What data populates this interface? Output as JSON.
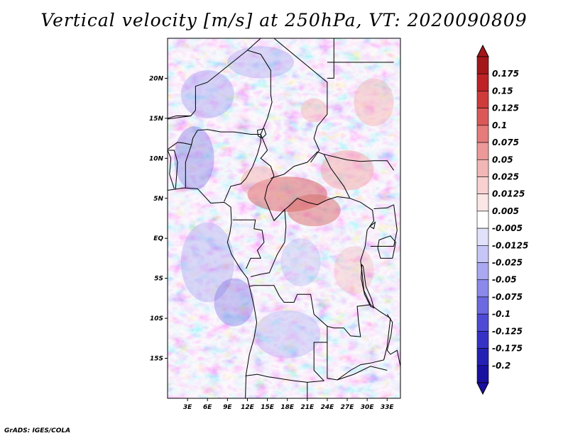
{
  "title": "Vertical velocity [m/s] at 250hPa, VT: 2020090809",
  "footer": "GrADS: IGES/COLA",
  "map": {
    "lon_range": [
      0,
      35
    ],
    "lat_range": [
      -20,
      25
    ],
    "y_ticks": [
      {
        "value": 20,
        "label": "20N"
      },
      {
        "value": 15,
        "label": "15N"
      },
      {
        "value": 10,
        "label": "10N"
      },
      {
        "value": 5,
        "label": "5N"
      },
      {
        "value": 0,
        "label": "EQ"
      },
      {
        "value": -5,
        "label": "5S"
      },
      {
        "value": -10,
        "label": "10S"
      },
      {
        "value": -15,
        "label": "15S"
      }
    ],
    "x_ticks": [
      {
        "value": 3,
        "label": "3E"
      },
      {
        "value": 6,
        "label": "6E"
      },
      {
        "value": 9,
        "label": "9E"
      },
      {
        "value": 12,
        "label": "12E"
      },
      {
        "value": 15,
        "label": "15E"
      },
      {
        "value": 18,
        "label": "18E"
      },
      {
        "value": 21,
        "label": "21E"
      },
      {
        "value": 24,
        "label": "24E"
      },
      {
        "value": 27,
        "label": "27E"
      },
      {
        "value": 30,
        "label": "30E"
      },
      {
        "value": 33,
        "label": "33E"
      }
    ],
    "field_colors": {
      "strong_up": "#d96a6a",
      "up": "#f2a8a8",
      "neutral": "#f7f2f5",
      "down": "#a7a4f0",
      "strong_down": "#6e68e0"
    },
    "boundary_color": "#000000"
  },
  "colorbar": {
    "levels": [
      {
        "label": "0.175",
        "color": "#a3171b"
      },
      {
        "label": "0.15",
        "color": "#bd2226"
      },
      {
        "label": "0.125",
        "color": "#cf3a3a"
      },
      {
        "label": "0.1",
        "color": "#dc5858"
      },
      {
        "label": "0.075",
        "color": "#e57b7b"
      },
      {
        "label": "0.05",
        "color": "#ed9999"
      },
      {
        "label": "0.025",
        "color": "#f3b6b6"
      },
      {
        "label": "0.0125",
        "color": "#f8d0d0"
      },
      {
        "label": "0.005",
        "color": "#fbe6e6"
      },
      {
        "label": "-0.005",
        "color": "#ffffff"
      },
      {
        "label": "-0.0125",
        "color": "#e1e1fa"
      },
      {
        "label": "-0.025",
        "color": "#c6c6f6"
      },
      {
        "label": "-0.05",
        "color": "#a9a8f1"
      },
      {
        "label": "-0.075",
        "color": "#8b89ea"
      },
      {
        "label": "-0.1",
        "color": "#6c69e1"
      },
      {
        "label": "-0.125",
        "color": "#4f4ad6"
      },
      {
        "label": "-0.175",
        "color": "#3732c6"
      },
      {
        "label": "-0.2",
        "color": "#2520b4"
      },
      {
        "label": "",
        "color": "#1a10a0"
      }
    ],
    "top_cap_color": "#a3171b",
    "bottom_cap_color": "#1a10a0"
  }
}
